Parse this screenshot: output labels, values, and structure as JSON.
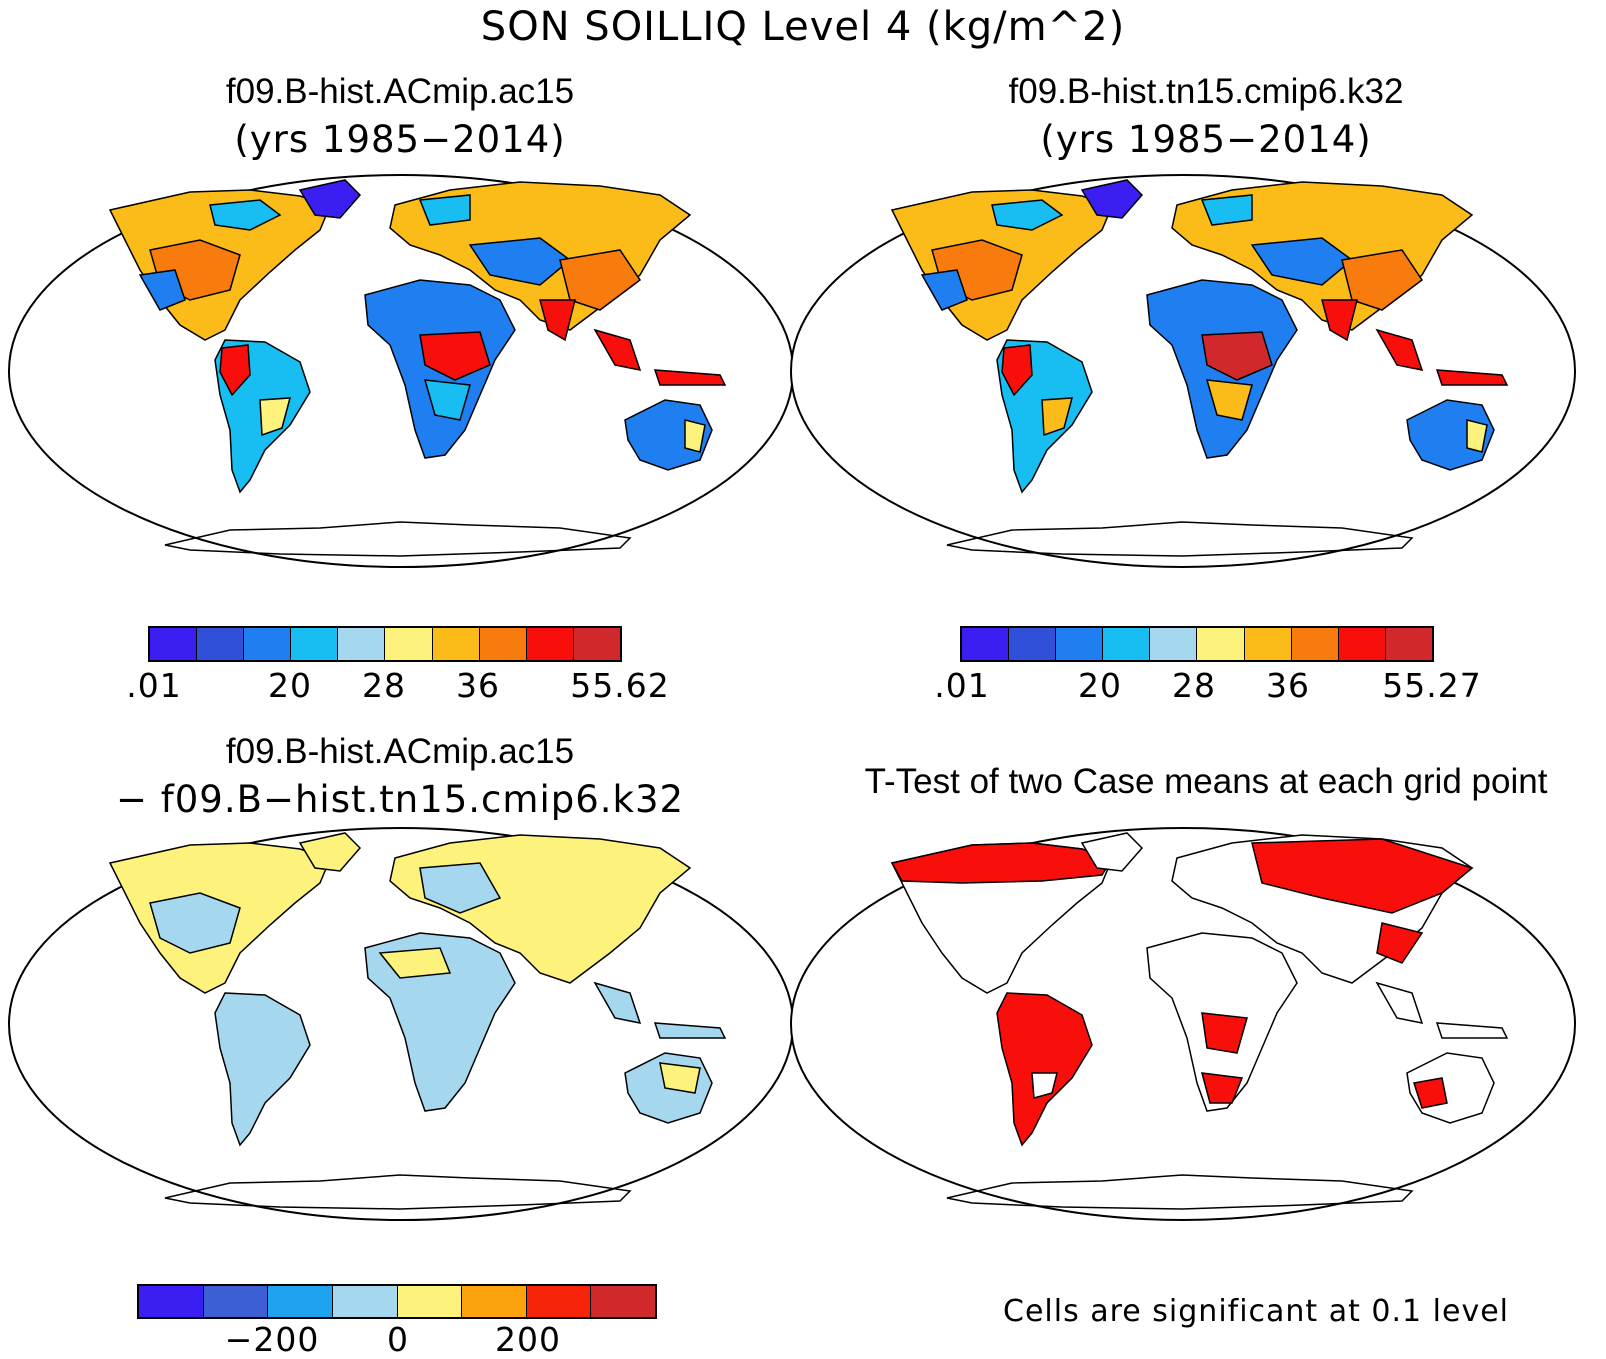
{
  "main_title": "SON SOILLIQ Level 4 (kg/m^2)",
  "panels": {
    "top_left": {
      "title": "f09.B-hist.ACmip.ac15",
      "subtitle": "(yrs 1985−2014)",
      "colorbar": {
        "colors": [
          "#3a1ef2",
          "#2f50d8",
          "#1f7ff0",
          "#18bdf2",
          "#a5d8ee",
          "#fdf27c",
          "#fbbc1a",
          "#f87c0d",
          "#f80e0b",
          "#d1282b"
        ],
        "tick_labels": [
          ".01",
          "20",
          "28",
          "36",
          "55.62"
        ]
      }
    },
    "top_right": {
      "title": "f09.B-hist.tn15.cmip6.k32",
      "subtitle": "(yrs 1985−2014)",
      "colorbar": {
        "colors": [
          "#3a1ef2",
          "#2f50d8",
          "#1f7ff0",
          "#18bdf2",
          "#a5d8ee",
          "#fdf27c",
          "#fbbc1a",
          "#f87c0d",
          "#f80e0b",
          "#d1282b"
        ],
        "tick_labels": [
          ".01",
          "20",
          "28",
          "36",
          "55.27"
        ]
      }
    },
    "bottom_left": {
      "title": "f09.B-hist.ACmip.ac15",
      "subtitle": "− f09.B−hist.tn15.cmip6.k32",
      "colorbar": {
        "colors": [
          "#3a1ef2",
          "#3d5fd4",
          "#1fa3ef",
          "#a5d8ee",
          "#fdf27c",
          "#fba20d",
          "#f8240a",
          "#d1282b"
        ],
        "tick_labels": [
          "−200",
          "0",
          "200"
        ]
      }
    },
    "bottom_right": {
      "title": "T-Test of two Case means at each grid point",
      "note": "Cells are significant at 0.1 level"
    }
  },
  "colors": {
    "ocean": "#ffffff",
    "outline": "#000000",
    "significant": "#f80e0b"
  }
}
